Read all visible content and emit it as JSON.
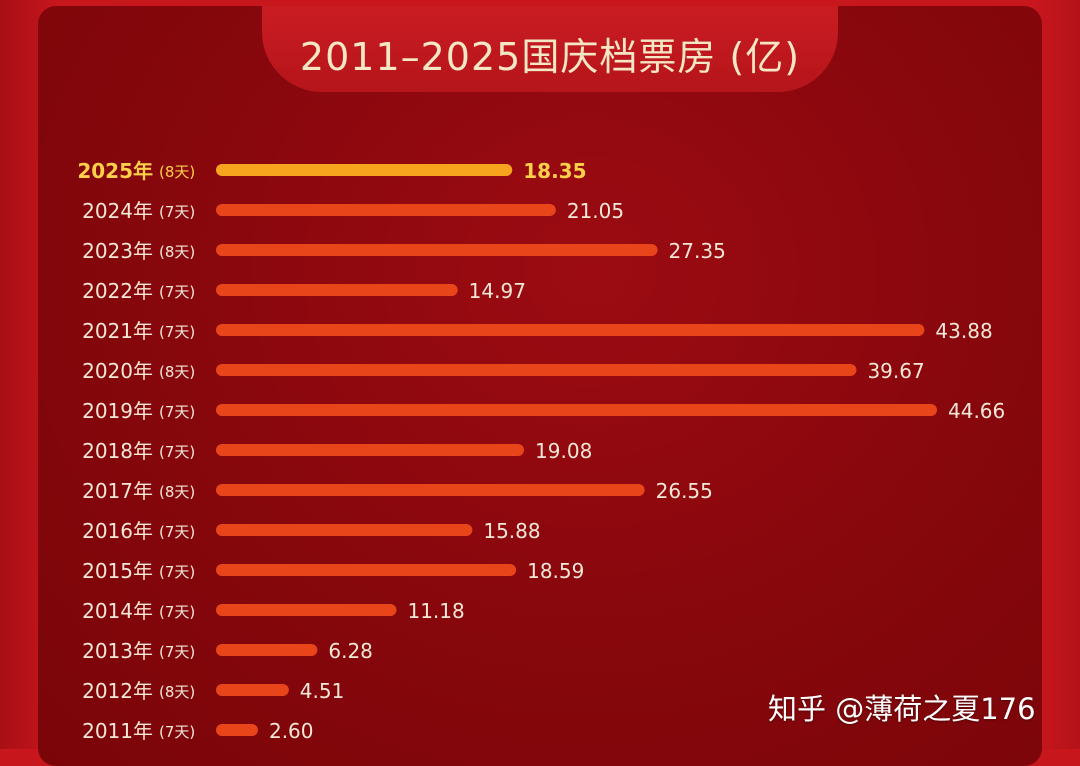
{
  "chart_data": {
    "type": "bar",
    "orientation": "horizontal",
    "title": "2011–2025国庆档票房 (亿)",
    "categories": [
      "2025年",
      "2024年",
      "2023年",
      "2022年",
      "2021年",
      "2020年",
      "2019年",
      "2018年",
      "2017年",
      "2016年",
      "2015年",
      "2014年",
      "2013年",
      "2012年",
      "2011年"
    ],
    "durations": [
      "(8天)",
      "(7天)",
      "(8天)",
      "(7天)",
      "(7天)",
      "(8天)",
      "(7天)",
      "(7天)",
      "(8天)",
      "(7天)",
      "(7天)",
      "(7天)",
      "(7天)",
      "(8天)",
      "(7天)"
    ],
    "values": [
      18.35,
      21.05,
      27.35,
      14.97,
      43.88,
      39.67,
      44.66,
      19.08,
      26.55,
      15.88,
      18.59,
      11.18,
      6.28,
      4.51,
      2.6
    ],
    "value_labels": [
      "18.35",
      "21.05",
      "27.35",
      "14.97",
      "43.88",
      "39.67",
      "44.66",
      "19.08",
      "26.55",
      "15.88",
      "18.59",
      "11.18",
      "6.28",
      "4.51",
      "2.60"
    ],
    "highlight_index": 0,
    "xlim": [
      0,
      44.66
    ],
    "grid": false,
    "legend": "none",
    "colors": {
      "bar": "#e8451a",
      "highlight_bar": "#f7a41e",
      "label": "#f6e7d7",
      "highlight_label": "#ffd04a"
    }
  },
  "watermark": "知乎 @薄荷之夏176"
}
